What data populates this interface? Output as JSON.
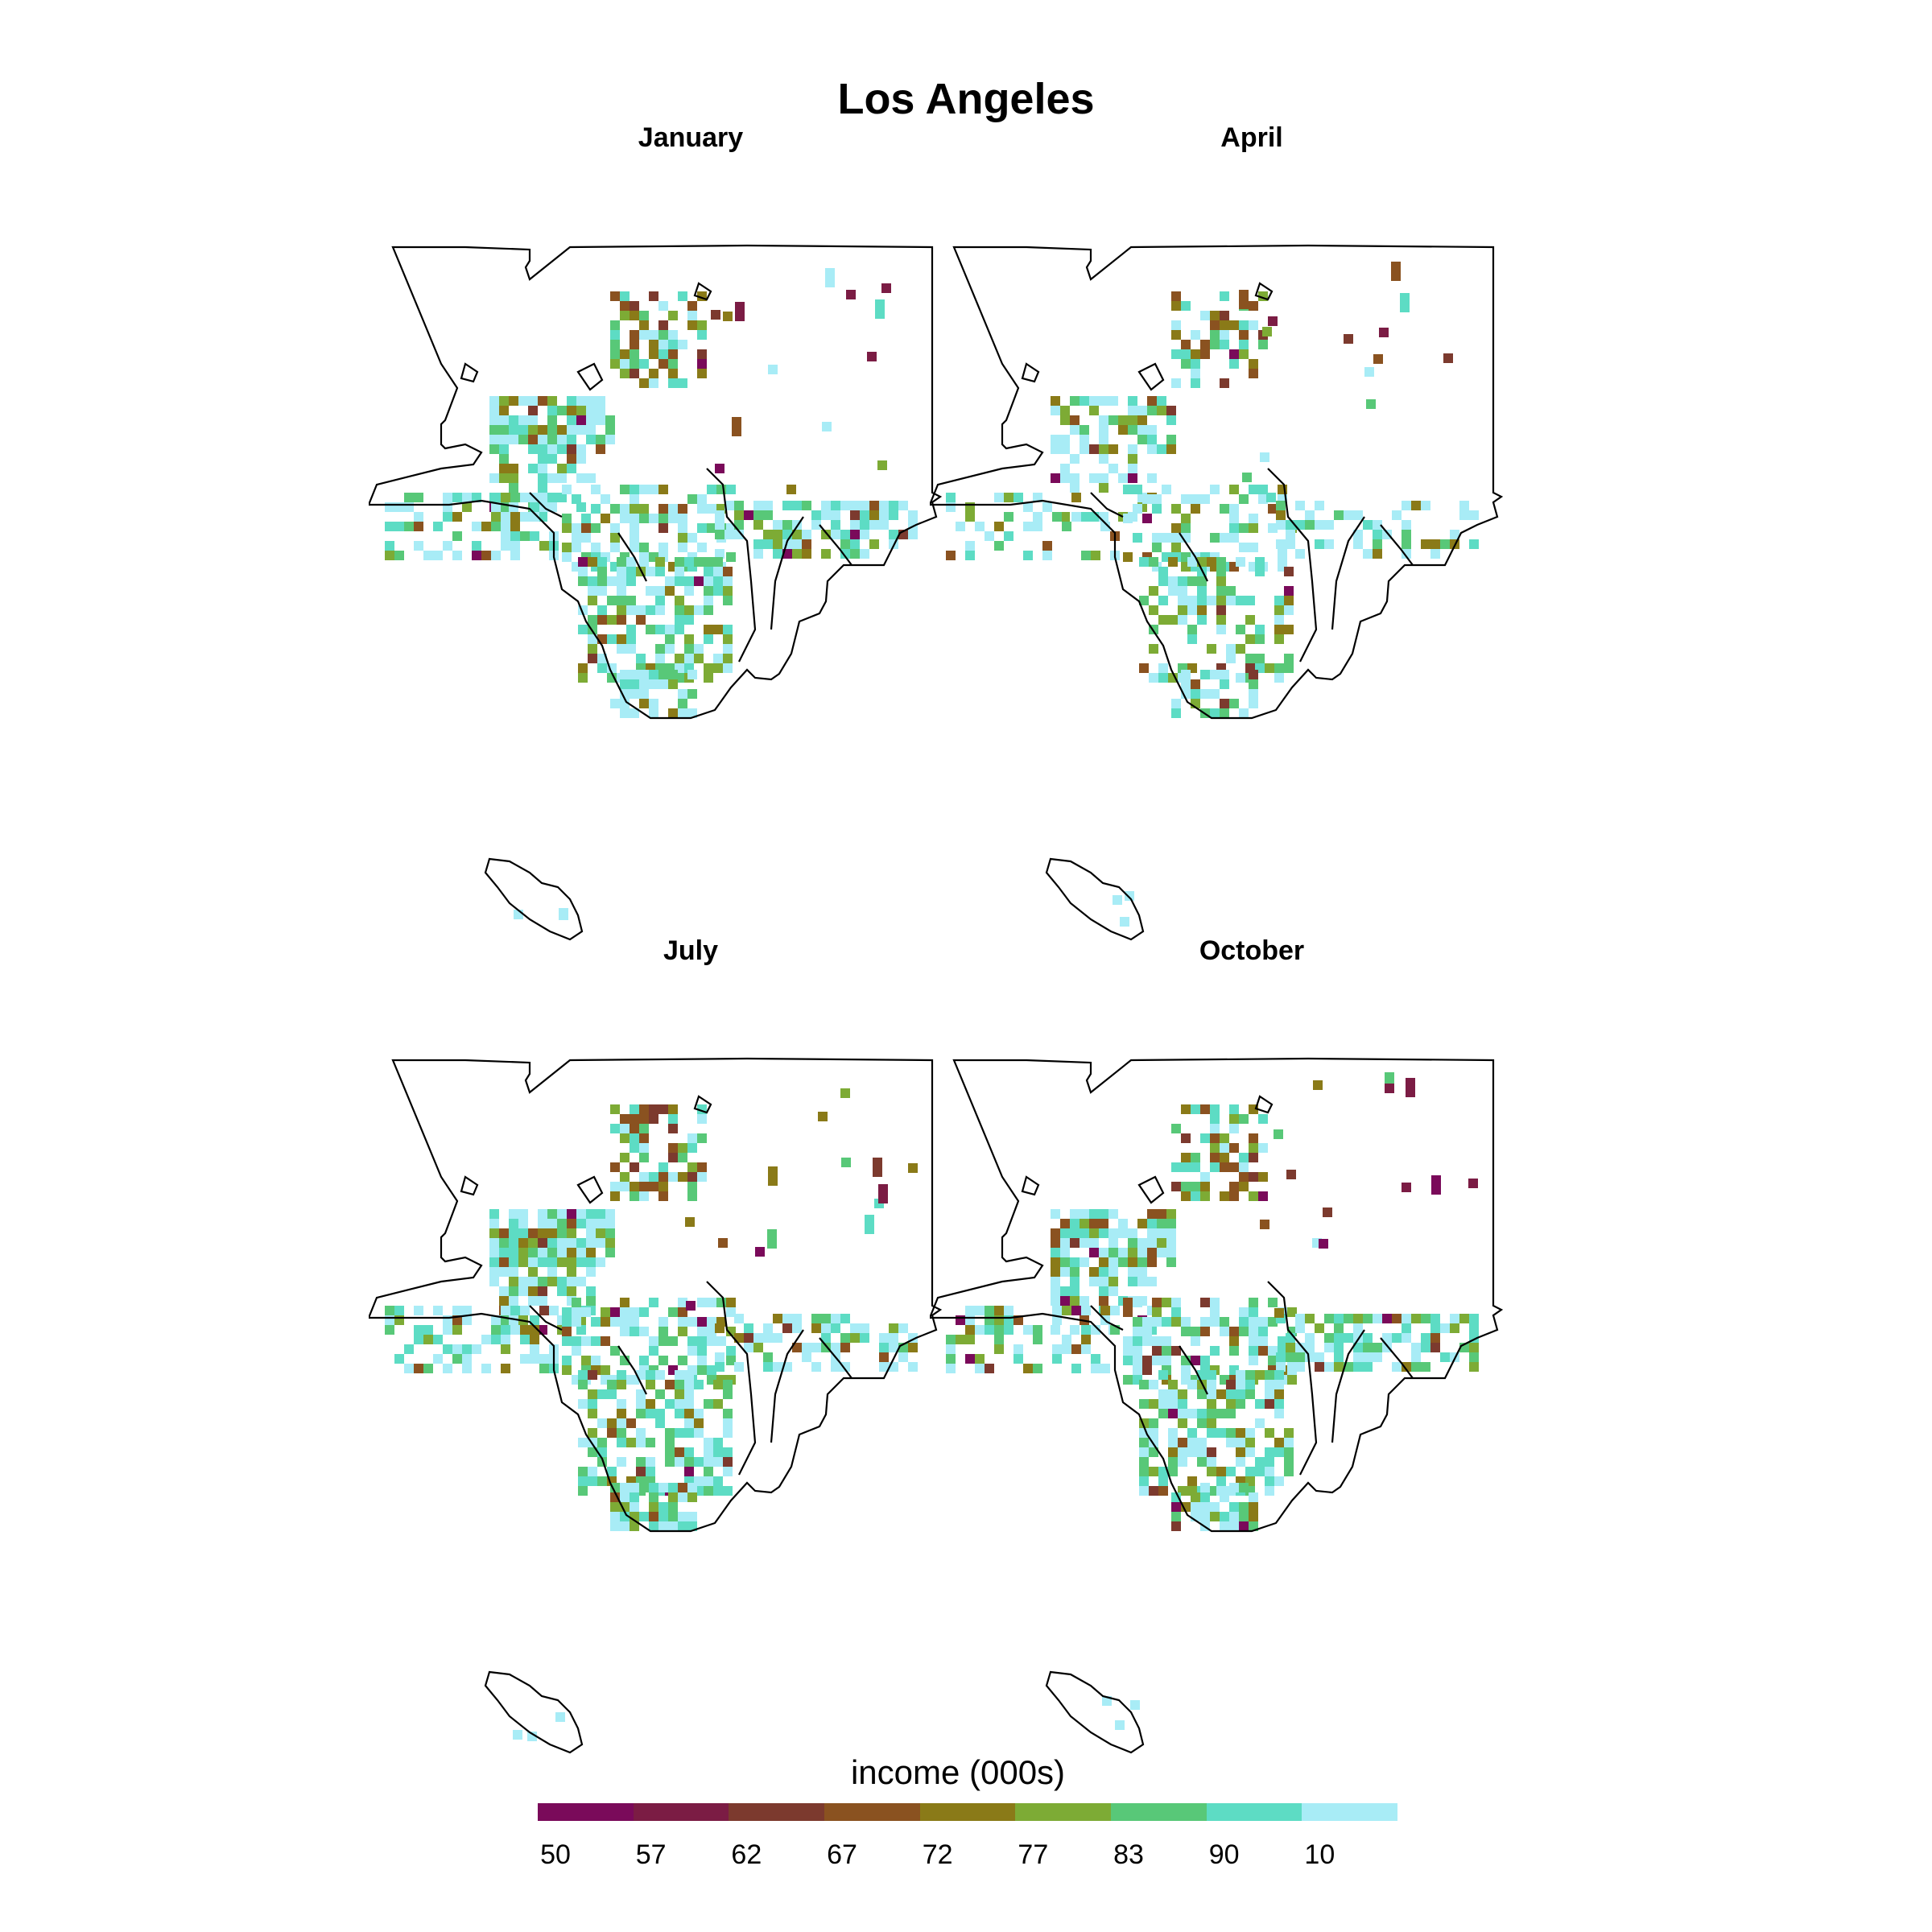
{
  "title": "Los Angeles",
  "panels": [
    {
      "id": "january",
      "label": "January"
    },
    {
      "id": "april",
      "label": "April"
    },
    {
      "id": "july",
      "label": "July"
    },
    {
      "id": "october",
      "label": "October"
    }
  ],
  "legend": {
    "title": "income (000s)",
    "colors": [
      "#7a0a5a",
      "#7b1c44",
      "#7c3a2e",
      "#8a5220",
      "#8a7a18",
      "#7dab35",
      "#58c878",
      "#5ddcc4",
      "#a8ecf6"
    ],
    "tick_labels": [
      "50",
      "57",
      "62",
      "67",
      "72",
      "77",
      "83",
      "90",
      "10"
    ]
  }
}
